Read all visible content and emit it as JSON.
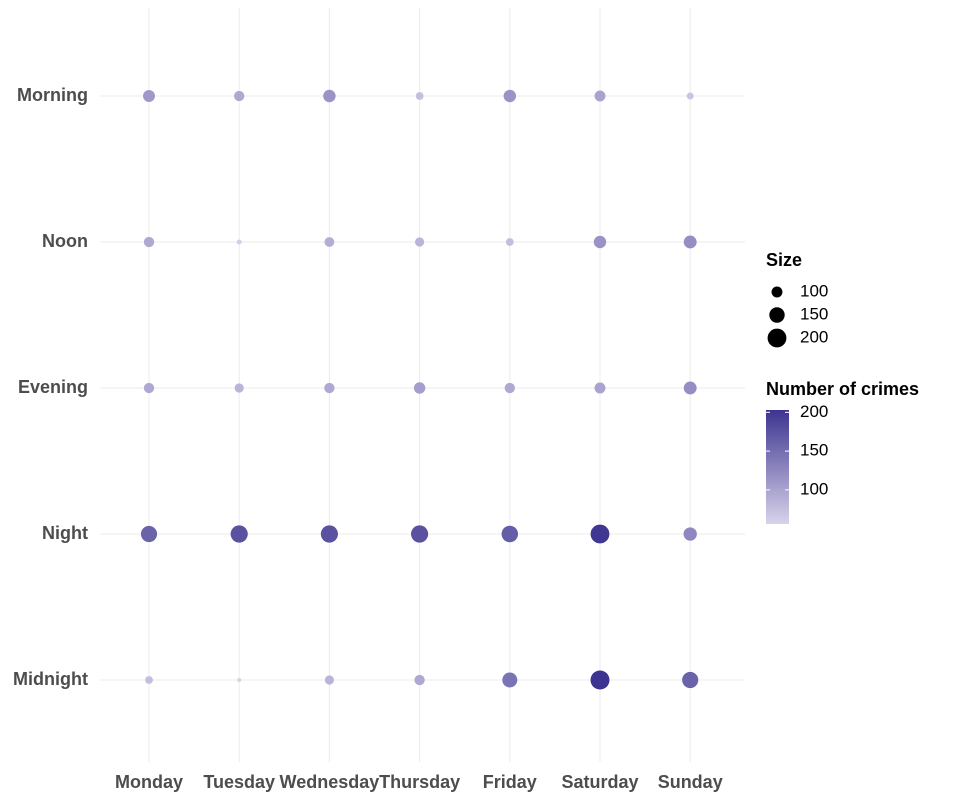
{
  "chart_data": {
    "type": "bubble",
    "categories": [
      "Monday",
      "Tuesday",
      "Wednesday",
      "Thursday",
      "Friday",
      "Saturday",
      "Sunday"
    ],
    "y_categories": [
      "Morning",
      "Noon",
      "Evening",
      "Night",
      "Midnight"
    ],
    "values": [
      [
        110,
        95,
        115,
        75,
        115,
        100,
        70
      ],
      [
        95,
        60,
        90,
        85,
        75,
        115,
        120
      ],
      [
        95,
        85,
        95,
        105,
        95,
        100,
        120
      ],
      [
        160,
        175,
        175,
        175,
        165,
        200,
        125
      ],
      [
        75,
        56,
        85,
        95,
        145,
        203,
        160
      ]
    ],
    "value_range": [
      56,
      203
    ],
    "colors": [
      "#d8d3ea",
      "#3c3490"
    ],
    "grid": true,
    "size_title": "Size",
    "size_ticks": [
      100,
      150,
      200
    ],
    "color_title": "Number of crimes",
    "color_ticks": [
      100,
      150,
      200
    ]
  }
}
